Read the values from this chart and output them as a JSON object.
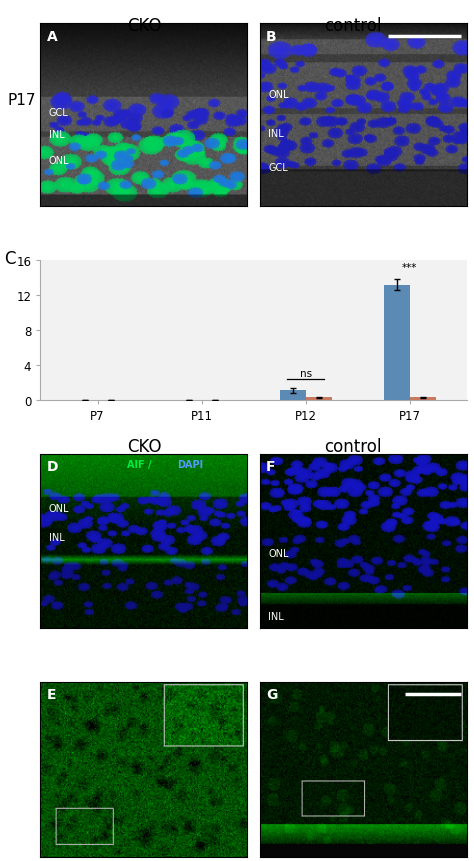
{
  "title_CKO": "CKO",
  "title_control": "control",
  "panel_C_label": "C",
  "panel_A_label": "A",
  "panel_B_label": "B",
  "panel_D_label": "D",
  "panel_E_label": "E",
  "panel_F_label": "F",
  "panel_G_label": "G",
  "P17_label": "P17",
  "bar_categories": [
    "P7",
    "P11",
    "P12",
    "P17"
  ],
  "bar_CKO_values": [
    0.0,
    0.0,
    1.1,
    13.2
  ],
  "bar_control_values": [
    0.0,
    0.0,
    0.3,
    0.3
  ],
  "bar_CKO_errors": [
    0.0,
    0.0,
    0.28,
    0.65
  ],
  "bar_control_errors": [
    0.0,
    0.0,
    0.06,
    0.06
  ],
  "bar_CKO_color": "#5b8ab5",
  "bar_control_color": "#c87a60",
  "ylim": [
    0,
    16
  ],
  "yticks": [
    0,
    4,
    8,
    12,
    16
  ],
  "ns_text": "ns",
  "sig_text": "***",
  "bg_color": "#f2f2f2",
  "fig_bg": "#ffffff",
  "gcl_label": "GCL",
  "inl_label": "INL",
  "onl_label": "ONL",
  "aif_label": "AIF",
  "dapi_label": "DAPI"
}
